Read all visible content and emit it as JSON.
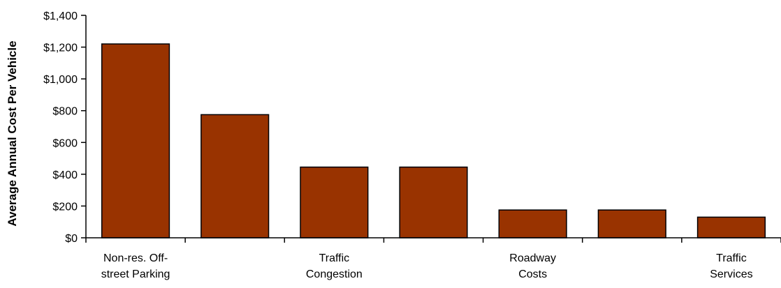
{
  "chart_data": {
    "type": "bar",
    "title": "",
    "xlabel": "",
    "ylabel": "Average Annual Cost Per Vehicle",
    "ylim": [
      0,
      1400
    ],
    "yticks": [
      0,
      200,
      400,
      600,
      800,
      1000,
      1200,
      1400
    ],
    "ytick_labels": [
      "$0",
      "$200",
      "$400",
      "$600",
      "$800",
      "$1,000",
      "$1,200",
      "$1,400"
    ],
    "categories": [
      [
        "Non-res. Off-",
        "street Parking"
      ],
      [],
      [
        "Traffic",
        "Congestion"
      ],
      [],
      [
        "Roadway",
        "Costs"
      ],
      [],
      [
        "Traffic",
        "Services"
      ]
    ],
    "values": [
      1220,
      775,
      445,
      445,
      175,
      175,
      130
    ],
    "grid": false,
    "legend": "none",
    "bar_color": "#993300"
  }
}
